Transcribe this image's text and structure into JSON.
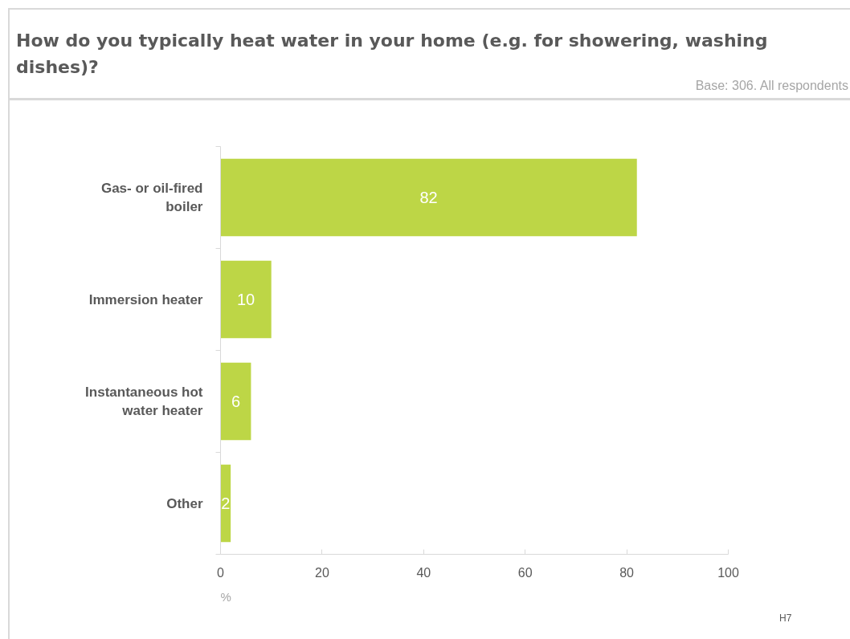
{
  "chart_data": {
    "type": "bar",
    "orientation": "horizontal",
    "title": "How do you typically heat water in your home (e.g. for showering, washing dishes)?",
    "subtitle": "Base: 306. All respondents",
    "xlabel": "%",
    "categories": [
      "Gas- or oil-fired boiler",
      "Immersion heater",
      "Instantaneous hot water heater",
      "Other"
    ],
    "values": [
      82,
      10,
      6,
      2
    ],
    "color": "#bdd646",
    "xlim": [
      0,
      100
    ],
    "xticks": [
      0,
      20,
      40,
      60,
      80,
      100
    ],
    "data_labels": true,
    "grid": false,
    "annotations": [
      "H7"
    ]
  }
}
